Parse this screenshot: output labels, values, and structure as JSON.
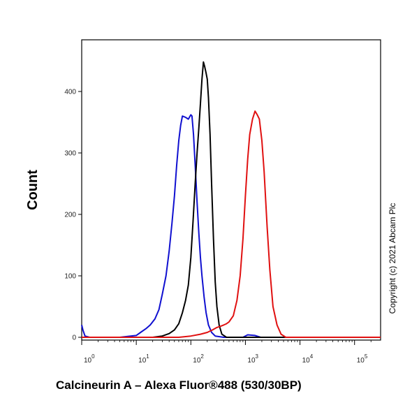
{
  "chart_data": {
    "type": "line",
    "xlabel": "Calcineurin A – Alexa Fluor®488 (530/30BP)",
    "ylabel": "Count",
    "x_scale": "log",
    "xlim": [
      1,
      300000
    ],
    "ylim": [
      0,
      500
    ],
    "y_ticks": [
      0,
      100,
      200,
      300,
      400
    ],
    "x_ticks": [
      {
        "value": 1,
        "base": "10",
        "exp": "0"
      },
      {
        "value": 10,
        "base": "10",
        "exp": "1"
      },
      {
        "value": 100,
        "base": "10",
        "exp": "2"
      },
      {
        "value": 1000,
        "base": "10",
        "exp": "3"
      },
      {
        "value": 10000,
        "base": "10",
        "exp": "4"
      },
      {
        "value": 100000,
        "base": "10",
        "exp": "5"
      }
    ],
    "annotation": "Copyright (c) 2021 Abcam Plc",
    "grid": false,
    "series": [
      {
        "color": "#1010d0",
        "points": [
          [
            1,
            20
          ],
          [
            1.05,
            12
          ],
          [
            1.15,
            2
          ],
          [
            1.4,
            0
          ],
          [
            5,
            0
          ],
          [
            10,
            3
          ],
          [
            12,
            8
          ],
          [
            15,
            14
          ],
          [
            18,
            20
          ],
          [
            22,
            30
          ],
          [
            26,
            45
          ],
          [
            30,
            70
          ],
          [
            35,
            100
          ],
          [
            40,
            140
          ],
          [
            45,
            185
          ],
          [
            50,
            230
          ],
          [
            55,
            280
          ],
          [
            60,
            320
          ],
          [
            65,
            345
          ],
          [
            70,
            360
          ],
          [
            80,
            358
          ],
          [
            90,
            355
          ],
          [
            100,
            362
          ],
          [
            105,
            360
          ],
          [
            112,
            330
          ],
          [
            120,
            280
          ],
          [
            130,
            220
          ],
          [
            140,
            170
          ],
          [
            150,
            130
          ],
          [
            160,
            100
          ],
          [
            175,
            65
          ],
          [
            190,
            40
          ],
          [
            210,
            20
          ],
          [
            240,
            8
          ],
          [
            280,
            2
          ],
          [
            400,
            0
          ],
          [
            900,
            0
          ],
          [
            1100,
            4
          ],
          [
            1500,
            3
          ],
          [
            1900,
            0
          ],
          [
            300000,
            0
          ]
        ]
      },
      {
        "color": "#000000",
        "points": [
          [
            1,
            0
          ],
          [
            20,
            0
          ],
          [
            30,
            2
          ],
          [
            40,
            6
          ],
          [
            50,
            12
          ],
          [
            60,
            22
          ],
          [
            70,
            40
          ],
          [
            80,
            60
          ],
          [
            90,
            85
          ],
          [
            100,
            130
          ],
          [
            110,
            190
          ],
          [
            120,
            250
          ],
          [
            130,
            300
          ],
          [
            140,
            340
          ],
          [
            150,
            380
          ],
          [
            160,
            420
          ],
          [
            170,
            448
          ],
          [
            180,
            440
          ],
          [
            190,
            430
          ],
          [
            200,
            420
          ],
          [
            210,
            390
          ],
          [
            225,
            330
          ],
          [
            240,
            250
          ],
          [
            260,
            160
          ],
          [
            280,
            90
          ],
          [
            300,
            50
          ],
          [
            330,
            20
          ],
          [
            370,
            5
          ],
          [
            450,
            0
          ],
          [
            300000,
            0
          ]
        ]
      },
      {
        "color": "#e01010",
        "points": [
          [
            1,
            0
          ],
          [
            60,
            0
          ],
          [
            100,
            2
          ],
          [
            150,
            5
          ],
          [
            200,
            8
          ],
          [
            250,
            12
          ],
          [
            300,
            16
          ],
          [
            350,
            18
          ],
          [
            400,
            20
          ],
          [
            450,
            22
          ],
          [
            500,
            25
          ],
          [
            600,
            35
          ],
          [
            700,
            60
          ],
          [
            800,
            100
          ],
          [
            900,
            160
          ],
          [
            1000,
            230
          ],
          [
            1100,
            290
          ],
          [
            1200,
            330
          ],
          [
            1350,
            355
          ],
          [
            1500,
            368
          ],
          [
            1650,
            362
          ],
          [
            1800,
            355
          ],
          [
            2000,
            320
          ],
          [
            2200,
            270
          ],
          [
            2500,
            180
          ],
          [
            2800,
            110
          ],
          [
            3200,
            50
          ],
          [
            3800,
            20
          ],
          [
            4500,
            5
          ],
          [
            5500,
            0
          ],
          [
            300000,
            0
          ]
        ]
      }
    ]
  }
}
